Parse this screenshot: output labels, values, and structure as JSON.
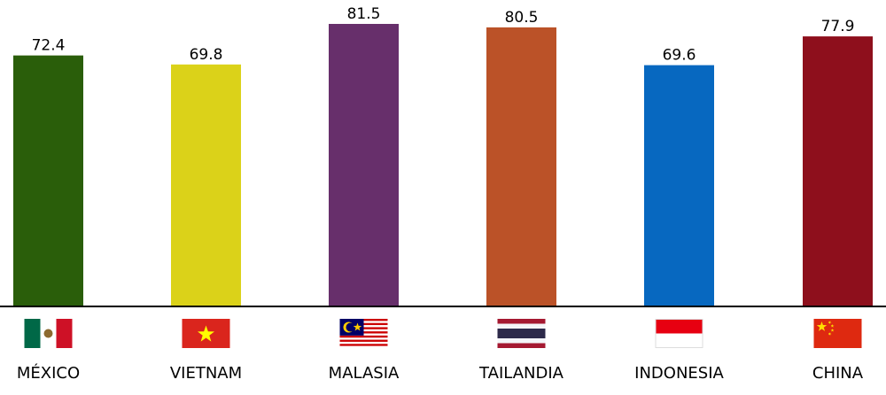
{
  "chart_data": {
    "type": "bar",
    "categories": [
      "MÉXICO",
      "VIETNAM",
      "MALASIA",
      "TAILANDIA",
      "INDONESIA",
      "CHINA"
    ],
    "values": [
      72.4,
      69.8,
      81.5,
      80.5,
      69.6,
      77.9
    ],
    "bar_colors": [
      "#2a5e0a",
      "#dbd219",
      "#672f6b",
      "#bb5228",
      "#0768c0",
      "#8e0f1c"
    ],
    "flags": [
      "mexico-flag",
      "vietnam-flag",
      "malaysia-flag",
      "thailand-flag",
      "indonesia-flag",
      "china-flag"
    ],
    "ylim": [
      0,
      81.5
    ],
    "grid": false,
    "value_labels": true
  }
}
